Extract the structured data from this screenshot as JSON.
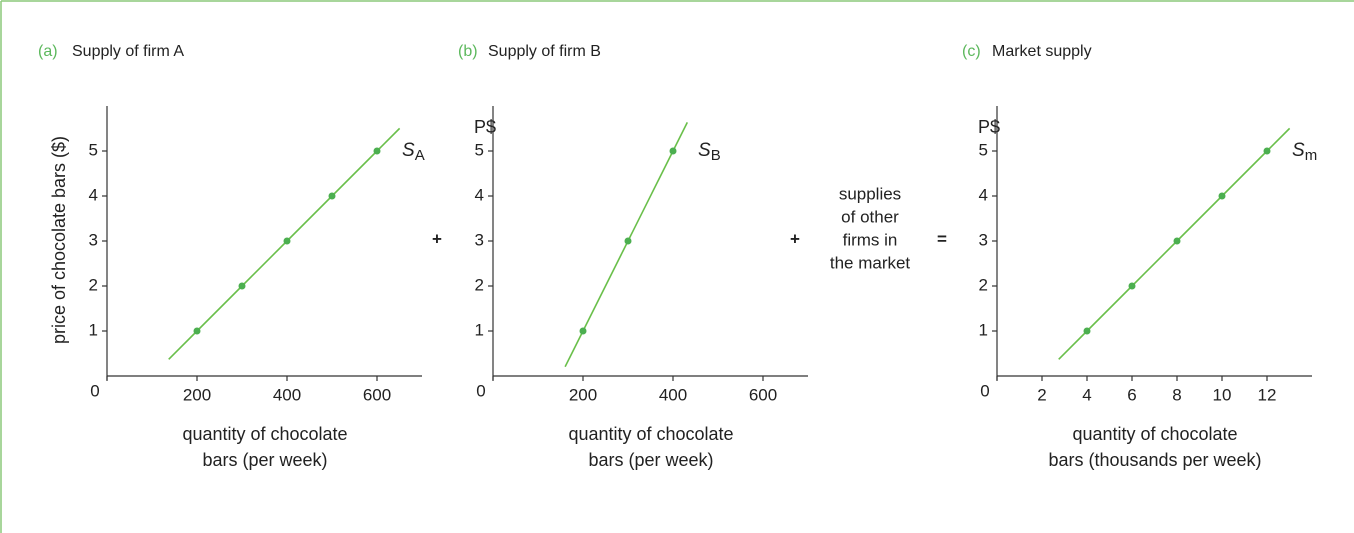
{
  "chart_data": [
    {
      "type": "line",
      "panel": "(a)",
      "title": "Supply of firm A",
      "ylabel": "price of chocolate bars ($)",
      "xlabel": [
        "quantity of chocolate",
        "bars (per week)"
      ],
      "x": [
        200,
        300,
        400,
        500,
        600
      ],
      "series": [
        {
          "name": "SA",
          "color": "#6abf4b",
          "values": [
            1,
            2,
            3,
            4,
            5
          ]
        }
      ],
      "xlim": [
        0,
        700
      ],
      "ylim": [
        0,
        6
      ],
      "xticks": [
        0,
        200,
        400,
        600
      ],
      "yticks": [
        1,
        2,
        3,
        4,
        5
      ]
    },
    {
      "type": "line",
      "panel": "(b)",
      "title": "Supply of firm B",
      "ylabel": "P$",
      "xlabel": [
        "quantity of chocolate",
        "bars (per week)"
      ],
      "x": [
        200,
        300,
        400
      ],
      "series": [
        {
          "name": "SB",
          "color": "#6abf4b",
          "values": [
            1,
            3,
            5
          ]
        }
      ],
      "xlim": [
        0,
        700
      ],
      "ylim": [
        0,
        6
      ],
      "xticks": [
        0,
        200,
        400,
        600
      ],
      "yticks": [
        1,
        2,
        3,
        4,
        5
      ]
    },
    {
      "type": "line",
      "panel": "(c)",
      "title": "Market supply",
      "ylabel": "P$",
      "xlabel": [
        "quantity of chocolate",
        "bars (thousands per week)"
      ],
      "x": [
        4,
        6,
        8,
        10,
        12
      ],
      "series": [
        {
          "name": "Sm",
          "color": "#6abf4b",
          "values": [
            1,
            2,
            3,
            4,
            5
          ]
        }
      ],
      "xlim": [
        0,
        14
      ],
      "ylim": [
        0,
        6
      ],
      "xticks": [
        0,
        2,
        4,
        6,
        8,
        10,
        12
      ],
      "yticks": [
        1,
        2,
        3,
        4,
        5
      ]
    }
  ],
  "operators": [
    "+",
    "+",
    "="
  ],
  "note": [
    "supplies",
    "of other",
    "firms in",
    "the market"
  ]
}
